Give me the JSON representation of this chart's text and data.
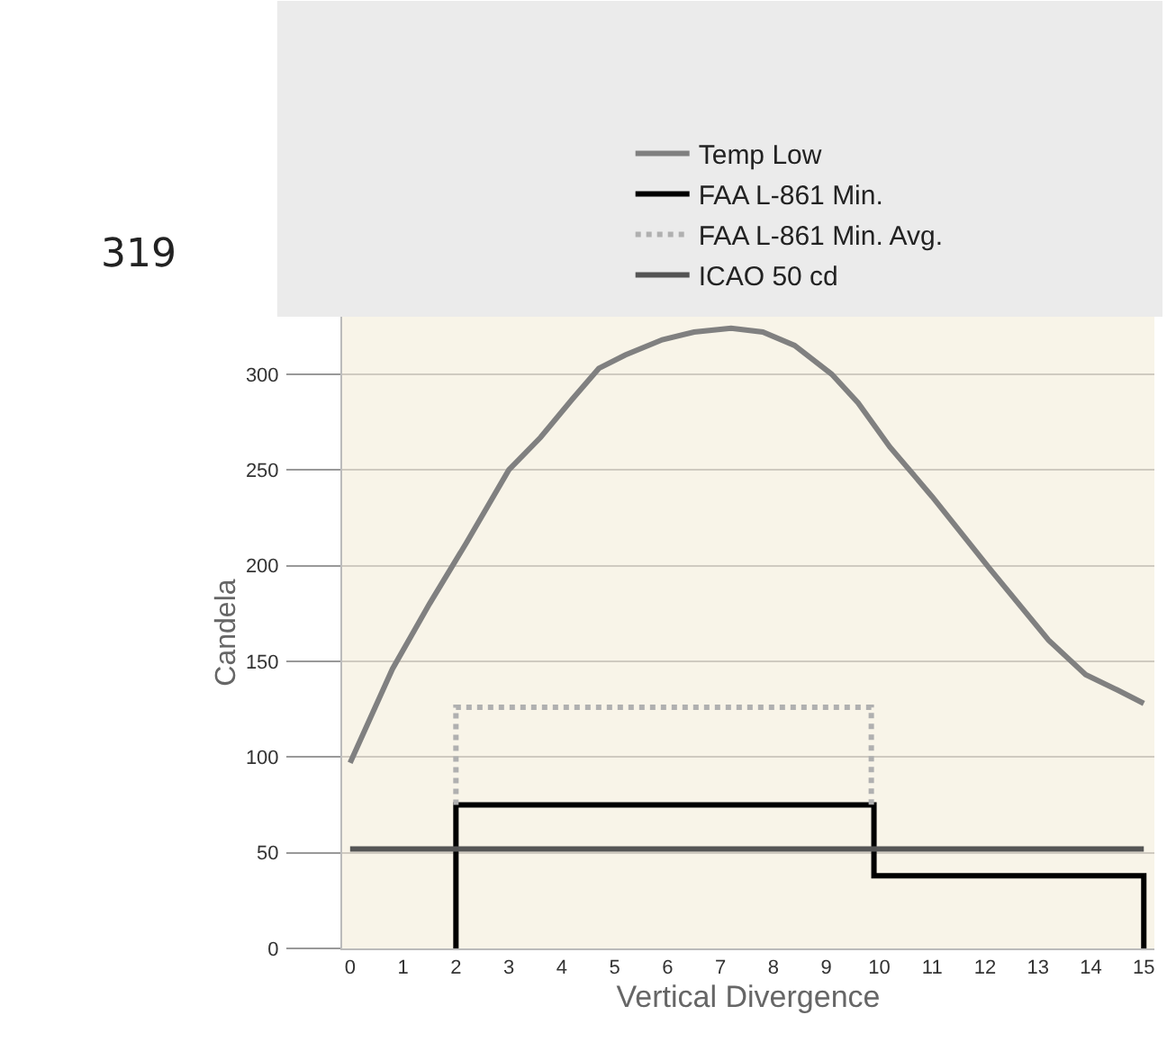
{
  "chart_data": {
    "type": "line",
    "xlabel": "Vertical Divergence",
    "ylabel": "Candela",
    "annotations": [
      "319"
    ],
    "xlim": [
      -0.15,
      15.2
    ],
    "xticks": [
      0,
      1,
      2,
      3,
      4,
      5,
      6,
      7,
      8,
      9,
      10,
      11,
      12,
      13,
      14,
      15
    ],
    "ylim": [
      0,
      330
    ],
    "yticks": [
      0,
      50,
      100,
      150,
      200,
      250,
      300
    ],
    "grid": "y",
    "legend": "top",
    "marker": "none",
    "series": [
      {
        "name": "Temp Low",
        "color": "#808080",
        "line_style": "solid",
        "x": [
          0,
          0.8,
          1.5,
          2.2,
          3.0,
          3.6,
          4.2,
          4.7,
          5.2,
          5.9,
          6.5,
          7.2,
          7.8,
          8.4,
          9.1,
          9.6,
          10.2,
          11,
          12.1,
          13.2,
          13.9,
          14.5,
          15
        ],
        "values": [
          97,
          146,
          180,
          212,
          250,
          267,
          287,
          303,
          310,
          318,
          322,
          324,
          322,
          315,
          300,
          285,
          262,
          236,
          198,
          161,
          143,
          135,
          128
        ]
      },
      {
        "name": "FAA L-861 Min.",
        "color": "#000000",
        "line_style": "solid",
        "x": [
          2,
          2,
          9.9,
          9.9,
          15,
          15
        ],
        "values": [
          0,
          75,
          75,
          38,
          38,
          0
        ]
      },
      {
        "name": "FAA L-861 Min. Avg.",
        "color": "#b0b0b0",
        "line_style": "dotted",
        "x": [
          2,
          2,
          9.85,
          9.85
        ],
        "values": [
          75,
          126,
          126,
          75
        ]
      },
      {
        "name": "ICAO 50 cd",
        "color": "#555555",
        "line_style": "solid",
        "x": [
          0,
          15
        ],
        "values": [
          52,
          52
        ]
      }
    ]
  }
}
